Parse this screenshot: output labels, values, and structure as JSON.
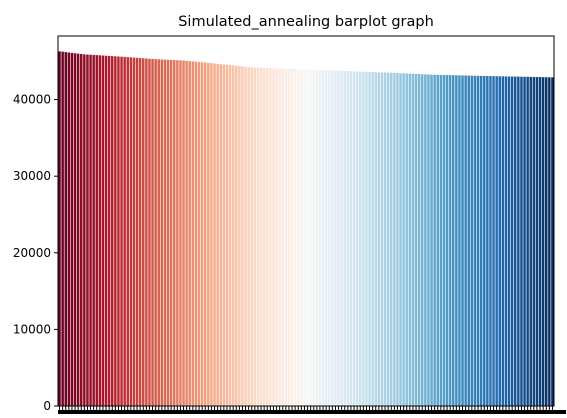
{
  "chart_data": {
    "type": "bar",
    "title": "Simulated_annealing barplot graph",
    "xlabel": "",
    "ylabel": "",
    "ylim": [
      0,
      48300
    ],
    "y_ticks": [
      0,
      10000,
      20000,
      30000,
      40000
    ],
    "y_tick_labels": [
      "0",
      "10000",
      "20000",
      "30000",
      "40000"
    ],
    "x_tick_labels": "dense, illegible (overlapping into a solid black band)",
    "grid": false,
    "legend": "none",
    "colormap": "RdBu",
    "palette_stops": [
      "#67001f",
      "#b2182b",
      "#d6604d",
      "#f4a582",
      "#fddbc7",
      "#f7f7f7",
      "#d1e5f0",
      "#92c5de",
      "#4393c3",
      "#2166ac",
      "#053061"
    ],
    "num_bars": 160,
    "value_profile": [
      {
        "rank": 0,
        "value": 46300
      },
      {
        "rank": 8,
        "value": 45900
      },
      {
        "rank": 20,
        "value": 45600
      },
      {
        "rank": 30,
        "value": 45300
      },
      {
        "rank": 40,
        "value": 45100
      },
      {
        "rank": 48,
        "value": 44800
      },
      {
        "rank": 55,
        "value": 44500
      },
      {
        "rank": 62,
        "value": 44200
      },
      {
        "rank": 72,
        "value": 44050
      },
      {
        "rank": 85,
        "value": 43850
      },
      {
        "rank": 100,
        "value": 43600
      },
      {
        "rank": 110,
        "value": 43450
      },
      {
        "rank": 120,
        "value": 43250
      },
      {
        "rank": 135,
        "value": 43100
      },
      {
        "rank": 150,
        "value": 42980
      },
      {
        "rank": 159,
        "value": 42900
      }
    ]
  }
}
